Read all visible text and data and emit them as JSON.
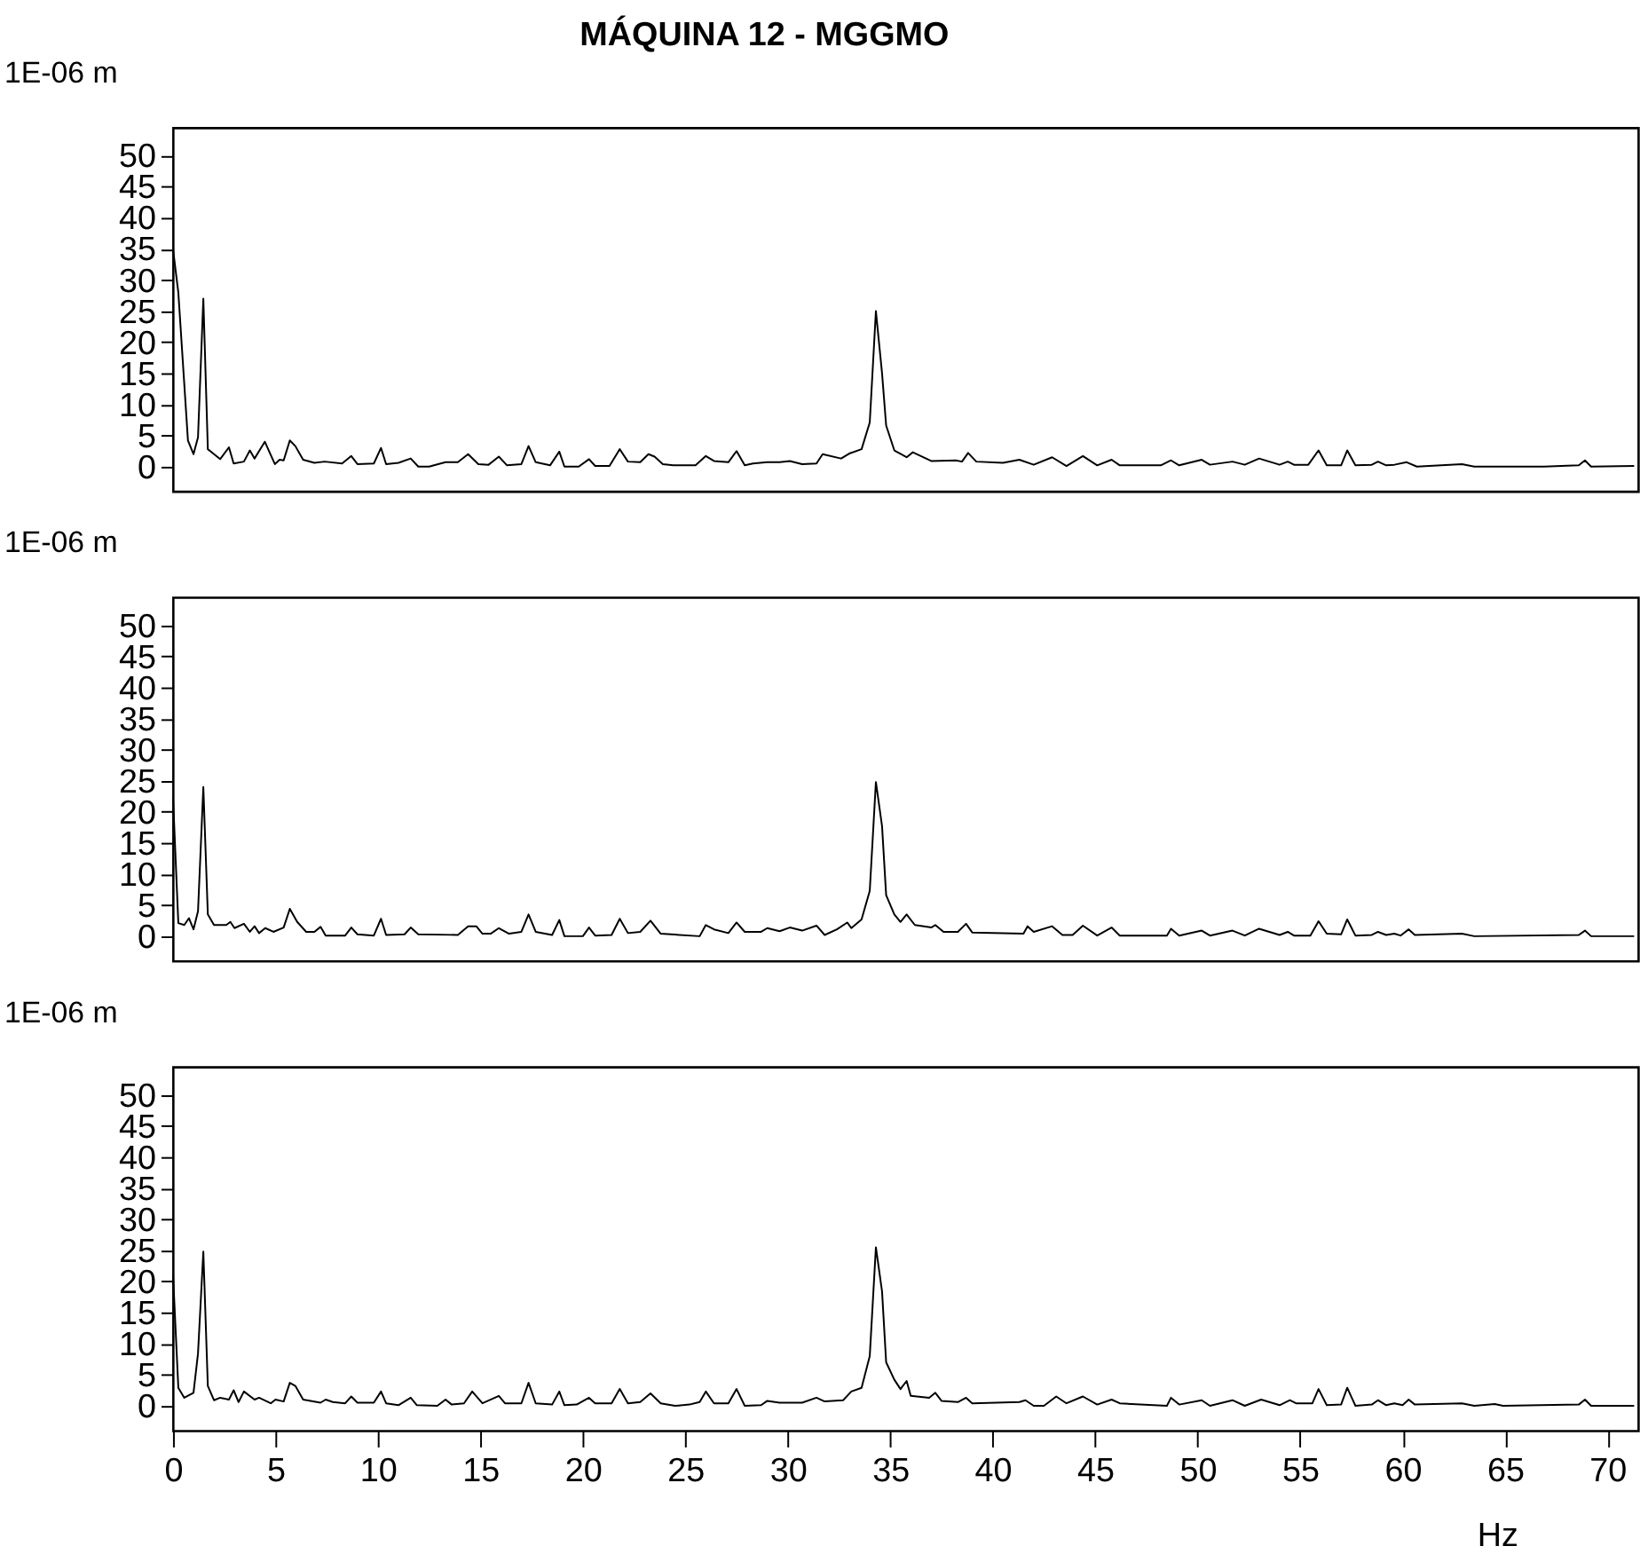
{
  "chart_data": [
    {
      "type": "line",
      "title": "MÁQUINA 12 - MGGMO",
      "ylabel": "1E-06 m",
      "xlim": [
        0,
        71.5
      ],
      "ylim": [
        -4,
        54.5
      ],
      "yticks": [
        0,
        5,
        10,
        15,
        20,
        25,
        30,
        35,
        40,
        45,
        50
      ],
      "tick_labels": "y",
      "line_style": "solid",
      "marker": "none",
      "series": [
        {
          "color": "#000000",
          "x": [
            0,
            0.26,
            0.73,
            1.0,
            1.22,
            1.48,
            1.7,
            2.3,
            2.73,
            2.96,
            3.46,
            3.75,
            3.98,
            4.48,
            4.97,
            5.2,
            5.4,
            5.7,
            5.97,
            6.35,
            6.9,
            7.4,
            8.25,
            8.7,
            9,
            9.8,
            10.15,
            10.4,
            11,
            11.6,
            11.97,
            12.5,
            13.3,
            13.9,
            14.4,
            14.9,
            15.4,
            15.9,
            16.3,
            17,
            17.35,
            17.7,
            18.4,
            18.85,
            19.1,
            19.8,
            20.3,
            20.6,
            21.3,
            21.8,
            22.2,
            22.8,
            23.2,
            23.5,
            23.9,
            24.4,
            25.5,
            26,
            26.4,
            27.1,
            27.5,
            27.9,
            28.3,
            29,
            29.6,
            30.1,
            30.7,
            31.4,
            31.7,
            32.6,
            33.0,
            33.6,
            34.0,
            34.3,
            34.6,
            34.8,
            35.2,
            35.8,
            36.1,
            37.0,
            38.2,
            38.5,
            38.8,
            39.2,
            40.5,
            41.3,
            42.0,
            42.9,
            43.6,
            44.4,
            45.1,
            45.8,
            46.2,
            48.2,
            48.7,
            49.1,
            50.2,
            50.6,
            51.7,
            52.3,
            53.0,
            54.0,
            54.4,
            54.7,
            55.4,
            55.9,
            56.3,
            57.0,
            57.3,
            57.7,
            58.5,
            58.8,
            59.2,
            59.6,
            60.2,
            60.7,
            62.9,
            63.5,
            66.9,
            68.6,
            68.9,
            69.2,
            71.3
          ],
          "values": [
            35,
            28,
            4.2,
            2,
            4.7,
            27,
            2.8,
            1.2,
            3.1,
            0.5,
            0.8,
            2.6,
            1.3,
            4,
            0.4,
            1.1,
            1,
            4.2,
            3.3,
            1.1,
            0.6,
            0.8,
            0.5,
            1.7,
            0.4,
            0.5,
            3,
            0.4,
            0.6,
            1.3,
            0,
            0,
            0.7,
            0.7,
            2,
            0.4,
            0.3,
            1.6,
            0.2,
            0.4,
            3.3,
            0.7,
            0.2,
            2.4,
            0,
            0,
            1.2,
            0.1,
            0.1,
            2.8,
            0.8,
            0.7,
            2,
            1.6,
            0.4,
            0.2,
            0.2,
            1.7,
            0.9,
            0.7,
            2.5,
            0.2,
            0.5,
            0.7,
            0.7,
            0.9,
            0.4,
            0.5,
            2,
            1.3,
            2.1,
            2.8,
            7.1,
            25,
            15,
            6.6,
            2.6,
            1.5,
            2.3,
            0.9,
            1,
            0.8,
            2.2,
            0.8,
            0.6,
            1.1,
            0.3,
            1.5,
            0.1,
            1.7,
            0.2,
            1.1,
            0.2,
            0.2,
            1,
            0.2,
            1.1,
            0.3,
            0.8,
            0.3,
            1.3,
            0.3,
            0.8,
            0.3,
            0.3,
            2.6,
            0.2,
            0.2,
            2.6,
            0.2,
            0.3,
            0.8,
            0.2,
            0.3,
            0.7,
            0,
            0.4,
            0,
            0,
            0.2,
            1,
            0,
            0.1
          ]
        }
      ]
    },
    {
      "type": "line",
      "ylabel": "1E-06 m",
      "xlim": [
        0,
        71.5
      ],
      "ylim": [
        -4,
        54.5
      ],
      "yticks": [
        0,
        5,
        10,
        15,
        20,
        25,
        30,
        35,
        40,
        45,
        50
      ],
      "tick_labels": "y",
      "line_style": "solid",
      "marker": "none",
      "series": [
        {
          "color": "#000000",
          "x": [
            0,
            0.26,
            0.55,
            0.78,
            1.0,
            1.22,
            1.48,
            1.7,
            2.0,
            2.6,
            2.8,
            3.0,
            3.46,
            3.75,
            3.98,
            4.2,
            4.5,
            4.9,
            5.4,
            5.7,
            6.06,
            6.5,
            6.9,
            7.2,
            7.45,
            8.4,
            8.7,
            9,
            9.8,
            10.15,
            10.4,
            11.3,
            11.6,
            11.97,
            13.9,
            14.4,
            14.8,
            15.1,
            15.5,
            15.9,
            16.4,
            17,
            17.35,
            17.7,
            18.5,
            18.85,
            19.1,
            20,
            20.3,
            20.6,
            21.4,
            21.8,
            22.2,
            22.8,
            23.3,
            23.8,
            25.7,
            26,
            26.4,
            27.1,
            27.5,
            27.9,
            28.7,
            29,
            29.6,
            30.1,
            30.7,
            31.4,
            31.8,
            32.4,
            32.9,
            33.1,
            33.6,
            34.0,
            34.3,
            34.6,
            34.8,
            35.2,
            35.5,
            35.8,
            36.2,
            37,
            37.2,
            37.6,
            38.3,
            38.7,
            39.0,
            41.5,
            41.7,
            42.0,
            42.9,
            43.4,
            43.9,
            44.4,
            45.1,
            45.8,
            46.2,
            48.5,
            48.7,
            49.1,
            50.2,
            50.6,
            51.7,
            52.3,
            53.0,
            54.0,
            54.4,
            54.7,
            55.5,
            55.9,
            56.3,
            57.0,
            57.3,
            57.7,
            58.5,
            58.8,
            59.2,
            59.6,
            59.9,
            60.3,
            60.6,
            62.9,
            63.5,
            68.6,
            68.9,
            69.2,
            71.3
          ],
          "values": [
            22.4,
            2.1,
            1.8,
            2.9,
            1.1,
            4,
            24,
            3.5,
            1.8,
            1.8,
            2.3,
            1.3,
            2,
            0.7,
            1.6,
            0.5,
            1.3,
            0.7,
            1.4,
            4.4,
            2.3,
            0.7,
            0.7,
            1.5,
            0.1,
            0.1,
            1.4,
            0.3,
            0.1,
            2.8,
            0.2,
            0.3,
            1.4,
            0.3,
            0.2,
            1.6,
            1.6,
            0.4,
            0.4,
            1.3,
            0.4,
            0.7,
            3.5,
            0.7,
            0.2,
            2.6,
            0,
            0,
            1.4,
            0.1,
            0.2,
            2.8,
            0.5,
            0.7,
            2.5,
            0.4,
            0,
            1.8,
            1.1,
            0.5,
            2.2,
            0.7,
            0.7,
            1.3,
            0.8,
            1.4,
            0.9,
            1.7,
            0.2,
            1.1,
            2.2,
            1.3,
            2.7,
            7.3,
            24.8,
            17.7,
            6.6,
            3.5,
            2.3,
            3.5,
            1.8,
            1.4,
            1.8,
            0.7,
            0.7,
            2,
            0.6,
            0.4,
            1.6,
            0.7,
            1.6,
            0.2,
            0.2,
            1.7,
            0.1,
            1.4,
            0.1,
            0.1,
            1.2,
            0.1,
            0.9,
            0.1,
            0.9,
            0.1,
            1.2,
            0.2,
            0.7,
            0.1,
            0.1,
            2.4,
            0.4,
            0.3,
            2.7,
            0.1,
            0.2,
            0.7,
            0.2,
            0.4,
            0.1,
            1.1,
            0.2,
            0.4,
            0,
            0.2,
            0.9,
            0,
            0
          ]
        }
      ]
    },
    {
      "type": "line",
      "ylabel": "1E-06 m",
      "xlabel": "Hz",
      "xlim": [
        0,
        71.5
      ],
      "ylim": [
        -4,
        54.5
      ],
      "xticks": [
        0,
        5,
        10,
        15,
        20,
        25,
        30,
        35,
        40,
        45,
        50,
        55,
        60,
        65,
        70
      ],
      "yticks": [
        0,
        5,
        10,
        15,
        20,
        25,
        30,
        35,
        40,
        45,
        50
      ],
      "line_style": "solid",
      "marker": "none",
      "series": [
        {
          "color": "#000000",
          "x": [
            0,
            0.26,
            0.55,
            1.0,
            1.22,
            1.48,
            1.7,
            2.0,
            2.3,
            2.73,
            2.96,
            3.2,
            3.46,
            3.98,
            4.2,
            4.77,
            5.0,
            5.4,
            5.7,
            5.97,
            6.35,
            7.2,
            7.45,
            7.8,
            8.4,
            8.7,
            9,
            9.8,
            10.15,
            10.4,
            11,
            11.6,
            11.9,
            12.9,
            13.3,
            13.6,
            14.2,
            14.6,
            15.1,
            15.9,
            16.2,
            17.0,
            17.35,
            17.7,
            18.5,
            18.85,
            19.1,
            19.7,
            20.3,
            20.6,
            21.4,
            21.8,
            22.2,
            22.8,
            23.3,
            23.8,
            24.5,
            25.2,
            25.7,
            26,
            26.4,
            27.1,
            27.5,
            27.9,
            28.7,
            29,
            29.6,
            30.7,
            31.4,
            31.8,
            32.7,
            33.1,
            33.6,
            34.0,
            34.3,
            34.6,
            34.8,
            35.2,
            35.5,
            35.8,
            36.0,
            36.9,
            37.2,
            37.5,
            38.3,
            38.7,
            39.0,
            41.3,
            41.6,
            42.0,
            42.5,
            43.1,
            43.6,
            44.4,
            45.1,
            45.8,
            46.2,
            48.5,
            48.7,
            49.1,
            50.2,
            50.6,
            51.7,
            52.3,
            53.1,
            54.0,
            54.5,
            54.8,
            55.6,
            55.9,
            56.3,
            57.0,
            57.3,
            57.7,
            58.5,
            58.8,
            59.2,
            59.6,
            60.0,
            60.3,
            60.6,
            62.9,
            63.5,
            64.5,
            64.9,
            68.6,
            68.9,
            69.2,
            71.3
          ],
          "values": [
            21.2,
            2.9,
            1.3,
            2.1,
            8.4,
            24.8,
            3.2,
            0.9,
            1.3,
            1,
            2.5,
            0.6,
            2.3,
            1,
            1.3,
            0.4,
            1,
            0.7,
            3.7,
            3.2,
            1,
            0.5,
            1,
            0.6,
            0.4,
            1.5,
            0.5,
            0.5,
            2.3,
            0.4,
            0.1,
            1.3,
            0.1,
            0,
            1,
            0.2,
            0.4,
            2.3,
            0.4,
            1.6,
            0.4,
            0.4,
            3.7,
            0.4,
            0.2,
            2.3,
            0.1,
            0.2,
            1.3,
            0.4,
            0.4,
            2.7,
            0.4,
            0.6,
            2,
            0.4,
            0,
            0.2,
            0.6,
            2.3,
            0.4,
            0.4,
            2.7,
            0,
            0.1,
            0.8,
            0.5,
            0.5,
            1.3,
            0.7,
            0.9,
            2.3,
            2.9,
            8,
            25.5,
            18.4,
            7,
            4.2,
            2.7,
            4,
            1.6,
            1.3,
            2.1,
            0.8,
            0.6,
            1.3,
            0.4,
            0.6,
            0.9,
            0,
            0,
            1.5,
            0.4,
            1.5,
            0.2,
            1,
            0.4,
            0,
            1.3,
            0.2,
            0.9,
            0,
            0.9,
            0,
            1,
            0.1,
            0.9,
            0.4,
            0.4,
            2.7,
            0.1,
            0.2,
            2.9,
            0,
            0.2,
            0.9,
            0.1,
            0.4,
            0.1,
            1,
            0.2,
            0.4,
            0,
            0.3,
            0,
            0.2,
            1,
            0,
            0
          ]
        }
      ]
    }
  ]
}
